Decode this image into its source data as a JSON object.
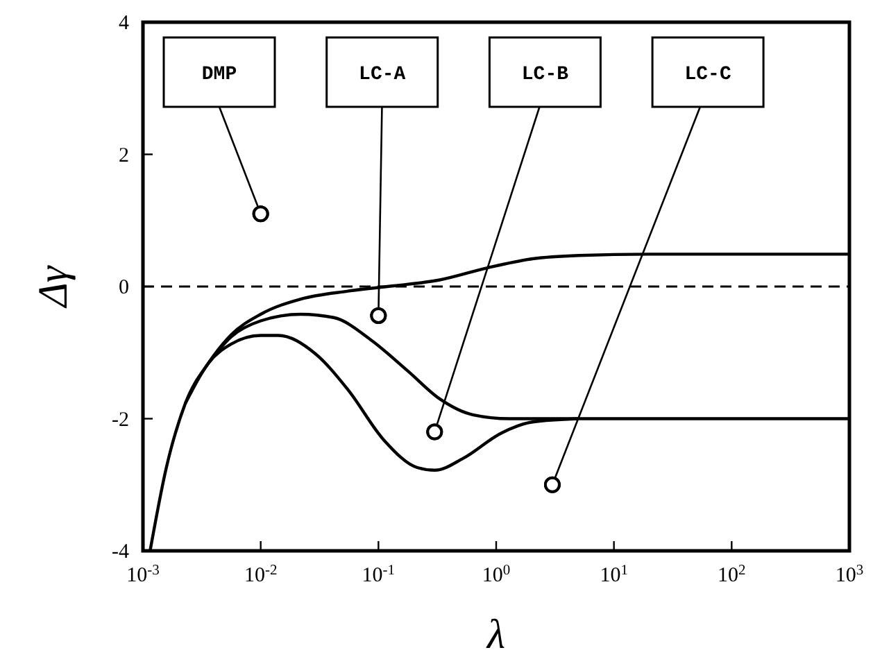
{
  "chart_data": {
    "type": "line",
    "xlabel": "λ",
    "ylabel": "Δγ",
    "log": "x",
    "xlim": [
      0.001,
      1000
    ],
    "ylim": [
      -4,
      4
    ],
    "xticks": [
      {
        "value": 0.001,
        "label": "10$^{-3}$"
      },
      {
        "value": 0.01,
        "label": "10$^{-2}$"
      },
      {
        "value": 0.1,
        "label": "10$^{-1}$"
      },
      {
        "value": 1,
        "label": "10$^{0}$"
      },
      {
        "value": 10,
        "label": "10$^{1}$"
      },
      {
        "value": 100,
        "label": "10$^{2}$"
      },
      {
        "value": 1000,
        "label": "10$^{3}$"
      }
    ],
    "yticks": [
      -4,
      -2,
      0,
      2,
      4
    ],
    "grid": false,
    "line_style": "solid",
    "marker": "none",
    "series": [
      {
        "color": "#000000",
        "x": [
          0.00115,
          0.00158,
          0.00229,
          0.00363,
          0.00562,
          0.01,
          0.0219,
          0.055,
          0.135,
          0.331,
          0.832,
          2.04,
          5.01,
          20,
          1000
        ],
        "values": [
          -4,
          -2.74,
          -1.77,
          -1.15,
          -0.73,
          -0.42,
          -0.19,
          -0.07,
          0.01,
          0.1,
          0.28,
          0.42,
          0.47,
          0.49,
          0.49
        ]
      },
      {
        "color": "#000000",
        "x": [
          0.00363,
          0.00562,
          0.01,
          0.0219,
          0.0417,
          0.0851,
          0.178,
          0.331,
          0.631,
          1.29,
          1000
        ],
        "values": [
          -1.15,
          -0.76,
          -0.52,
          -0.42,
          -0.47,
          -0.8,
          -1.28,
          -1.7,
          -1.94,
          -2,
          -2
        ]
      },
      {
        "color": "#000000",
        "x": [
          0.00229,
          0.00363,
          0.00562,
          0.01,
          0.0141,
          0.0288,
          0.055,
          0.112,
          0.214,
          0.302,
          0.525,
          1.1,
          2.04,
          5.01
        ],
        "values": [
          -1.77,
          -1.15,
          -0.87,
          -0.74,
          -0.74,
          -1.01,
          -1.56,
          -2.33,
          -2.74,
          -2.78,
          -2.6,
          -2.22,
          -2.05,
          -2
        ]
      },
      {
        "type": "scatter",
        "marker": "circle",
        "color": "#000000",
        "x": [
          0.01,
          0.1,
          0.3,
          3
        ],
        "values": [
          1.1,
          -0.44,
          -2.2,
          -3
        ]
      }
    ],
    "ref_lines": [
      {
        "axis": "y",
        "value": 0,
        "line_style": "dashed",
        "color": "#000000"
      }
    ],
    "annotations": [
      {
        "text": "DMP",
        "x": 0.01,
        "y": 1.1
      },
      {
        "text": "LC-A",
        "x": 0.1,
        "y": -0.44
      },
      {
        "text": "LC-B",
        "x": 0.3,
        "y": -2.2
      },
      {
        "text": "LC-C",
        "x": 3,
        "y": -3
      }
    ]
  }
}
